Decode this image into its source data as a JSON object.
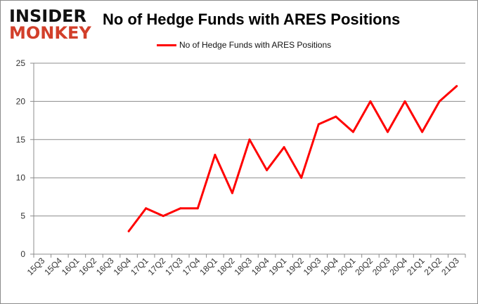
{
  "logo": {
    "line1": "INSIDER",
    "line2": "MONKEY"
  },
  "chart_data": {
    "type": "line",
    "title": "No of Hedge Funds with ARES Positions",
    "categories": [
      "15Q3",
      "15Q4",
      "16Q1",
      "16Q2",
      "16Q3",
      "16Q4",
      "17Q1",
      "17Q2",
      "17Q3",
      "17Q4",
      "18Q1",
      "18Q2",
      "18Q3",
      "18Q4",
      "19Q1",
      "19Q2",
      "19Q3",
      "19Q4",
      "20Q1",
      "20Q2",
      "20Q3",
      "20Q4",
      "21Q1",
      "21Q2",
      "21Q3"
    ],
    "series": [
      {
        "name": "No of Hedge Funds with ARES Positions",
        "color": "#ff0000",
        "values": [
          null,
          null,
          null,
          null,
          null,
          3,
          6,
          5,
          6,
          6,
          13,
          8,
          15,
          11,
          14,
          10,
          17,
          18,
          16,
          20,
          16,
          20,
          16,
          20,
          22
        ]
      }
    ],
    "ylim": [
      0,
      25
    ],
    "yticks": [
      0,
      5,
      10,
      15,
      20,
      25
    ],
    "grid": true,
    "legend": "top"
  }
}
